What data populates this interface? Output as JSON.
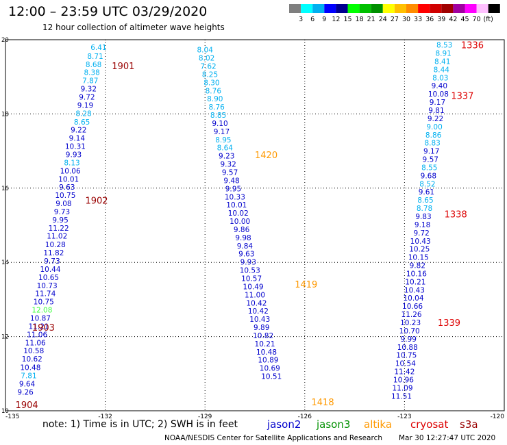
{
  "header": {
    "title": "12:00 – 23:59 UTC 03/29/2020",
    "subtitle": "12 hour collection of altimeter wave heights"
  },
  "colorbar": {
    "colors": [
      "#7f7f7f",
      "#00ffff",
      "#00b0f0",
      "#0000ff",
      "#000090",
      "#00ff00",
      "#00c000",
      "#009000",
      "#ffff00",
      "#ffc000",
      "#ff8c00",
      "#ff0000",
      "#d00000",
      "#a00000",
      "#a000a0",
      "#ff00ff",
      "#ffc0ff",
      "#000000"
    ],
    "labels": [
      "3",
      "6",
      "9",
      "12",
      "15",
      "18",
      "21",
      "24",
      "27",
      "30",
      "33",
      "36",
      "39",
      "42",
      "45",
      "70",
      "(ft)"
    ]
  },
  "footer": {
    "note": "note:  1) Time is in UTC;  2) SWH is in feet",
    "credit": "NOAA/NESDIS Center for Satellite Applications and Research",
    "timestamp": "Mar 30 12:27:47 UTC 2020"
  },
  "legend": [
    {
      "name": "jason2",
      "color": "#0000cc"
    },
    {
      "name": "jason3",
      "color": "#009000"
    },
    {
      "name": "altika",
      "color": "#ff9900"
    },
    {
      "name": "cryosat",
      "color": "#dd0000"
    },
    {
      "name": "s3a",
      "color": "#990000"
    }
  ],
  "chart_data": {
    "type": "scatter",
    "xlim": [
      -135,
      -120
    ],
    "ylim": [
      10,
      20
    ],
    "x_ticks": [
      "-135",
      "-132",
      "-129",
      "-126",
      "-123",
      "-120"
    ],
    "y_ticks": [
      "20",
      "18",
      "16",
      "14",
      "12",
      "10"
    ],
    "grid": true,
    "tracks": [
      {
        "satellite": "s3a",
        "pass_times": [
          {
            "time": "1901",
            "x": -131.8,
            "y": 19.3
          },
          {
            "time": "1902",
            "x": -132.6,
            "y": 15.67
          },
          {
            "time": "1903",
            "x": -134.2,
            "y": 12.25
          },
          {
            "time": "1904",
            "x": -134.7,
            "y": 10.17
          }
        ],
        "points": [
          {
            "v": "6.41",
            "x": -132.2,
            "y": 19.8,
            "c": "#00b0f0"
          },
          {
            "v": "8.71",
            "x": -132.3,
            "y": 19.56,
            "c": "#00b0f0"
          },
          {
            "v": "8.68",
            "x": -132.35,
            "y": 19.34,
            "c": "#00b0f0"
          },
          {
            "v": "8.38",
            "x": -132.4,
            "y": 19.12,
            "c": "#00b0f0"
          },
          {
            "v": "7.87",
            "x": -132.45,
            "y": 18.9,
            "c": "#00b0f0"
          },
          {
            "v": "9.32",
            "x": -132.5,
            "y": 18.68,
            "c": "#0000cc"
          },
          {
            "v": "9.72",
            "x": -132.55,
            "y": 18.46,
            "c": "#0000cc"
          },
          {
            "v": "9.19",
            "x": -132.6,
            "y": 18.24,
            "c": "#0000cc"
          },
          {
            "v": "8.28",
            "x": -132.65,
            "y": 18.02,
            "c": "#00b0f0"
          },
          {
            "v": "8.65",
            "x": -132.7,
            "y": 17.79,
            "c": "#00b0f0"
          },
          {
            "v": "9.22",
            "x": -132.8,
            "y": 17.57,
            "c": "#0000cc"
          },
          {
            "v": "9.14",
            "x": -132.85,
            "y": 17.35,
            "c": "#0000cc"
          },
          {
            "v": "10.31",
            "x": -132.9,
            "y": 17.13,
            "c": "#0000cc"
          },
          {
            "v": "9.93",
            "x": -132.95,
            "y": 16.91,
            "c": "#0000cc"
          },
          {
            "v": "8.13",
            "x": -133.0,
            "y": 16.69,
            "c": "#00b0f0"
          },
          {
            "v": "10.06",
            "x": -133.05,
            "y": 16.47,
            "c": "#0000cc"
          },
          {
            "v": "10.01",
            "x": -133.1,
            "y": 16.25,
            "c": "#0000cc"
          },
          {
            "v": "9.63",
            "x": -133.15,
            "y": 16.03,
            "c": "#0000cc"
          },
          {
            "v": "10.75",
            "x": -133.2,
            "y": 15.81,
            "c": "#0000cc"
          },
          {
            "v": "9.08",
            "x": -133.25,
            "y": 15.59,
            "c": "#0000cc"
          },
          {
            "v": "9.73",
            "x": -133.3,
            "y": 15.37,
            "c": "#0000cc"
          },
          {
            "v": "9.95",
            "x": -133.35,
            "y": 15.15,
            "c": "#0000cc"
          },
          {
            "v": "11.22",
            "x": -133.4,
            "y": 14.93,
            "c": "#0000cc"
          },
          {
            "v": "11.02",
            "x": -133.45,
            "y": 14.71,
            "c": "#0000cc"
          },
          {
            "v": "10.28",
            "x": -133.5,
            "y": 14.48,
            "c": "#0000cc"
          },
          {
            "v": "11.82",
            "x": -133.55,
            "y": 14.26,
            "c": "#0000cc"
          },
          {
            "v": "9.73",
            "x": -133.6,
            "y": 14.04,
            "c": "#0000cc"
          },
          {
            "v": "10.44",
            "x": -133.65,
            "y": 13.82,
            "c": "#0000cc"
          },
          {
            "v": "10.65",
            "x": -133.7,
            "y": 13.6,
            "c": "#0000cc"
          },
          {
            "v": "10.73",
            "x": -133.75,
            "y": 13.38,
            "c": "#0000cc"
          },
          {
            "v": "11.74",
            "x": -133.8,
            "y": 13.16,
            "c": "#0000cc"
          },
          {
            "v": "10.75",
            "x": -133.85,
            "y": 12.94,
            "c": "#0000cc"
          },
          {
            "v": "12.08",
            "x": -133.9,
            "y": 12.72,
            "c": "#40ff40"
          },
          {
            "v": "10.87",
            "x": -133.95,
            "y": 12.5,
            "c": "#0000cc"
          },
          {
            "v": "11.21",
            "x": -134.0,
            "y": 12.28,
            "c": "#0000cc"
          },
          {
            "v": "11.06",
            "x": -134.05,
            "y": 12.06,
            "c": "#0000cc"
          },
          {
            "v": "11.06",
            "x": -134.1,
            "y": 11.84,
            "c": "#0000cc"
          },
          {
            "v": "10.58",
            "x": -134.15,
            "y": 11.62,
            "c": "#0000cc"
          },
          {
            "v": "10.62",
            "x": -134.2,
            "y": 11.4,
            "c": "#0000cc"
          },
          {
            "v": "10.48",
            "x": -134.25,
            "y": 11.17,
            "c": "#0000cc"
          },
          {
            "v": "7.81",
            "x": -134.3,
            "y": 10.95,
            "c": "#00b0f0"
          },
          {
            "v": "9.64",
            "x": -134.35,
            "y": 10.73,
            "c": "#0000cc"
          },
          {
            "v": "9.26",
            "x": -134.4,
            "y": 10.51,
            "c": "#0000cc"
          }
        ]
      },
      {
        "satellite": "altika",
        "pass_times": [
          {
            "time": "1420",
            "x": -127.5,
            "y": 16.9
          },
          {
            "time": "1419",
            "x": -126.3,
            "y": 13.41
          },
          {
            "time": "1418",
            "x": -125.8,
            "y": 10.24
          }
        ],
        "points": [
          {
            "v": "8.04",
            "x": -129.0,
            "y": 19.73,
            "c": "#00b0f0"
          },
          {
            "v": "8.02",
            "x": -128.95,
            "y": 19.51,
            "c": "#00b0f0"
          },
          {
            "v": "7.62",
            "x": -128.9,
            "y": 19.29,
            "c": "#00b0f0"
          },
          {
            "v": "8.25",
            "x": -128.85,
            "y": 19.07,
            "c": "#00b0f0"
          },
          {
            "v": "8.30",
            "x": -128.8,
            "y": 18.85,
            "c": "#00b0f0"
          },
          {
            "v": "8.76",
            "x": -128.75,
            "y": 18.63,
            "c": "#00b0f0"
          },
          {
            "v": "8.90",
            "x": -128.7,
            "y": 18.41,
            "c": "#00b0f0"
          },
          {
            "v": "8.76",
            "x": -128.65,
            "y": 18.19,
            "c": "#00b0f0"
          },
          {
            "v": "8.85",
            "x": -128.6,
            "y": 17.97,
            "c": "#00b0f0"
          },
          {
            "v": "9.10",
            "x": -128.55,
            "y": 17.75,
            "c": "#0000cc"
          },
          {
            "v": "9.17",
            "x": -128.5,
            "y": 17.53,
            "c": "#0000cc"
          },
          {
            "v": "8.95",
            "x": -128.45,
            "y": 17.31,
            "c": "#00b0f0"
          },
          {
            "v": "8.64",
            "x": -128.4,
            "y": 17.09,
            "c": "#00b0f0"
          },
          {
            "v": "9.23",
            "x": -128.35,
            "y": 16.87,
            "c": "#0000cc"
          },
          {
            "v": "9.32",
            "x": -128.3,
            "y": 16.65,
            "c": "#0000cc"
          },
          {
            "v": "9.57",
            "x": -128.25,
            "y": 16.43,
            "c": "#0000cc"
          },
          {
            "v": "9.48",
            "x": -128.2,
            "y": 16.21,
            "c": "#0000cc"
          },
          {
            "v": "9.95",
            "x": -128.15,
            "y": 15.99,
            "c": "#0000cc"
          },
          {
            "v": "10.33",
            "x": -128.1,
            "y": 15.77,
            "c": "#0000cc"
          },
          {
            "v": "10.01",
            "x": -128.05,
            "y": 15.55,
            "c": "#0000cc"
          },
          {
            "v": "10.02",
            "x": -128.0,
            "y": 15.33,
            "c": "#0000cc"
          },
          {
            "v": "10.00",
            "x": -127.95,
            "y": 15.11,
            "c": "#0000cc"
          },
          {
            "v": "9.86",
            "x": -127.9,
            "y": 14.89,
            "c": "#0000cc"
          },
          {
            "v": "9.98",
            "x": -127.85,
            "y": 14.67,
            "c": "#0000cc"
          },
          {
            "v": "9.84",
            "x": -127.8,
            "y": 14.45,
            "c": "#0000cc"
          },
          {
            "v": "9.63",
            "x": -127.75,
            "y": 14.23,
            "c": "#0000cc"
          },
          {
            "v": "9.93",
            "x": -127.7,
            "y": 14.01,
            "c": "#0000cc"
          },
          {
            "v": "10.53",
            "x": -127.65,
            "y": 13.79,
            "c": "#0000cc"
          },
          {
            "v": "10.57",
            "x": -127.6,
            "y": 13.57,
            "c": "#0000cc"
          },
          {
            "v": "10.49",
            "x": -127.55,
            "y": 13.35,
            "c": "#0000cc"
          },
          {
            "v": "11.00",
            "x": -127.5,
            "y": 13.13,
            "c": "#0000cc"
          },
          {
            "v": "10.42",
            "x": -127.45,
            "y": 12.91,
            "c": "#0000cc"
          },
          {
            "v": "10.42",
            "x": -127.4,
            "y": 12.69,
            "c": "#0000cc"
          },
          {
            "v": "10.43",
            "x": -127.35,
            "y": 12.47,
            "c": "#0000cc"
          },
          {
            "v": "9.89",
            "x": -127.3,
            "y": 12.25,
            "c": "#0000cc"
          },
          {
            "v": "10.82",
            "x": -127.25,
            "y": 12.03,
            "c": "#0000cc"
          },
          {
            "v": "10.21",
            "x": -127.2,
            "y": 11.81,
            "c": "#0000cc"
          },
          {
            "v": "10.48",
            "x": -127.15,
            "y": 11.59,
            "c": "#0000cc"
          },
          {
            "v": "10.89",
            "x": -127.1,
            "y": 11.37,
            "c": "#0000cc"
          },
          {
            "v": "10.69",
            "x": -127.05,
            "y": 11.15,
            "c": "#0000cc"
          },
          {
            "v": "10.51",
            "x": -127.0,
            "y": 10.93,
            "c": "#0000cc"
          }
        ]
      },
      {
        "satellite": "cryosat",
        "pass_times": [
          {
            "time": "1336",
            "x": -121.3,
            "y": 19.86
          },
          {
            "time": "1337",
            "x": -121.6,
            "y": 18.5
          },
          {
            "time": "1338",
            "x": -121.8,
            "y": 15.3
          },
          {
            "time": "1339",
            "x": -122.0,
            "y": 12.38
          }
        ],
        "points": [
          {
            "v": "8.53",
            "x": -121.8,
            "y": 19.86,
            "c": "#00b0f0"
          },
          {
            "v": "8.91",
            "x": -121.83,
            "y": 19.64,
            "c": "#00b0f0"
          },
          {
            "v": "8.41",
            "x": -121.86,
            "y": 19.42,
            "c": "#00b0f0"
          },
          {
            "v": "8.44",
            "x": -121.89,
            "y": 19.2,
            "c": "#00b0f0"
          },
          {
            "v": "8.03",
            "x": -121.92,
            "y": 18.98,
            "c": "#00b0f0"
          },
          {
            "v": "9.40",
            "x": -121.95,
            "y": 18.76,
            "c": "#0000cc"
          },
          {
            "v": "10.08",
            "x": -121.98,
            "y": 18.54,
            "c": "#0000cc"
          },
          {
            "v": "9.17",
            "x": -122.01,
            "y": 18.32,
            "c": "#0000cc"
          },
          {
            "v": "9.81",
            "x": -122.04,
            "y": 18.1,
            "c": "#0000cc"
          },
          {
            "v": "9.22",
            "x": -122.07,
            "y": 17.88,
            "c": "#0000cc"
          },
          {
            "v": "9.00",
            "x": -122.1,
            "y": 17.66,
            "c": "#00b0f0"
          },
          {
            "v": "8.86",
            "x": -122.13,
            "y": 17.44,
            "c": "#00b0f0"
          },
          {
            "v": "8.83",
            "x": -122.16,
            "y": 17.22,
            "c": "#00b0f0"
          },
          {
            "v": "9.17",
            "x": -122.19,
            "y": 17.0,
            "c": "#0000cc"
          },
          {
            "v": "9.57",
            "x": -122.22,
            "y": 16.78,
            "c": "#0000cc"
          },
          {
            "v": "8.55",
            "x": -122.25,
            "y": 16.56,
            "c": "#00b0f0"
          },
          {
            "v": "9.68",
            "x": -122.28,
            "y": 16.34,
            "c": "#0000cc"
          },
          {
            "v": "8.52",
            "x": -122.31,
            "y": 16.12,
            "c": "#00b0f0"
          },
          {
            "v": "9.61",
            "x": -122.34,
            "y": 15.9,
            "c": "#0000cc"
          },
          {
            "v": "8.65",
            "x": -122.37,
            "y": 15.68,
            "c": "#00b0f0"
          },
          {
            "v": "8.78",
            "x": -122.4,
            "y": 15.46,
            "c": "#00b0f0"
          },
          {
            "v": "9.83",
            "x": -122.43,
            "y": 15.24,
            "c": "#0000cc"
          },
          {
            "v": "9.18",
            "x": -122.46,
            "y": 15.02,
            "c": "#0000cc"
          },
          {
            "v": "9.72",
            "x": -122.49,
            "y": 14.8,
            "c": "#0000cc"
          },
          {
            "v": "10.43",
            "x": -122.52,
            "y": 14.58,
            "c": "#0000cc"
          },
          {
            "v": "10.25",
            "x": -122.55,
            "y": 14.36,
            "c": "#0000cc"
          },
          {
            "v": "10.15",
            "x": -122.58,
            "y": 14.14,
            "c": "#0000cc"
          },
          {
            "v": "9.82",
            "x": -122.61,
            "y": 13.92,
            "c": "#0000cc"
          },
          {
            "v": "10.16",
            "x": -122.64,
            "y": 13.7,
            "c": "#0000cc"
          },
          {
            "v": "10.21",
            "x": -122.67,
            "y": 13.48,
            "c": "#0000cc"
          },
          {
            "v": "10.43",
            "x": -122.7,
            "y": 13.26,
            "c": "#0000cc"
          },
          {
            "v": "10.04",
            "x": -122.73,
            "y": 13.04,
            "c": "#0000cc"
          },
          {
            "v": "10.66",
            "x": -122.76,
            "y": 12.82,
            "c": "#0000cc"
          },
          {
            "v": "11.26",
            "x": -122.79,
            "y": 12.6,
            "c": "#0000cc"
          },
          {
            "v": "10.23",
            "x": -122.82,
            "y": 12.38,
            "c": "#0000cc"
          },
          {
            "v": "10.70",
            "x": -122.85,
            "y": 12.16,
            "c": "#0000cc"
          },
          {
            "v": "9.99",
            "x": -122.88,
            "y": 11.94,
            "c": "#0000cc"
          },
          {
            "v": "10.88",
            "x": -122.91,
            "y": 11.72,
            "c": "#0000cc"
          },
          {
            "v": "10.75",
            "x": -122.94,
            "y": 11.5,
            "c": "#0000cc"
          },
          {
            "v": "10.54",
            "x": -122.97,
            "y": 11.28,
            "c": "#0000cc"
          },
          {
            "v": "11.42",
            "x": -123.0,
            "y": 11.06,
            "c": "#0000cc"
          },
          {
            "v": "10.96",
            "x": -123.03,
            "y": 10.84,
            "c": "#0000cc"
          },
          {
            "v": "11.09",
            "x": -123.06,
            "y": 10.62,
            "c": "#0000cc"
          },
          {
            "v": "11.51",
            "x": -123.09,
            "y": 10.4,
            "c": "#0000cc"
          }
        ]
      }
    ]
  }
}
